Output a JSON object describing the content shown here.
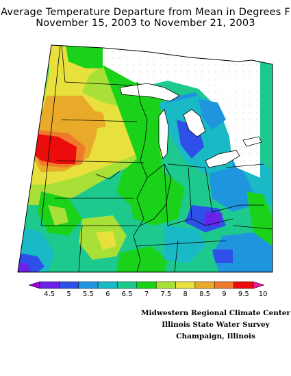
{
  "title": {
    "line1": "Average Temperature Departure from Mean in Degrees F",
    "line2": "November 15, 2003 to November 21, 2003"
  },
  "legend": {
    "ticks": [
      "4.5",
      "5",
      "5.5",
      "6",
      "6.5",
      "7",
      "7.5",
      "8",
      "8.5",
      "9",
      "9.5",
      "10"
    ],
    "colors": [
      "#a000d8",
      "#6a22e8",
      "#2e50e8",
      "#1f95e0",
      "#19b9c6",
      "#1ec98e",
      "#19d219",
      "#a8e038",
      "#e8e03c",
      "#e8aa28",
      "#ee7a2c",
      "#ec0c0c",
      "#e81ca0"
    ]
  },
  "credits": {
    "line1": "Midwestern Regional Climate Center",
    "line2": "Illinois State Water Survey",
    "line3": "Champaign, Illinois"
  }
}
